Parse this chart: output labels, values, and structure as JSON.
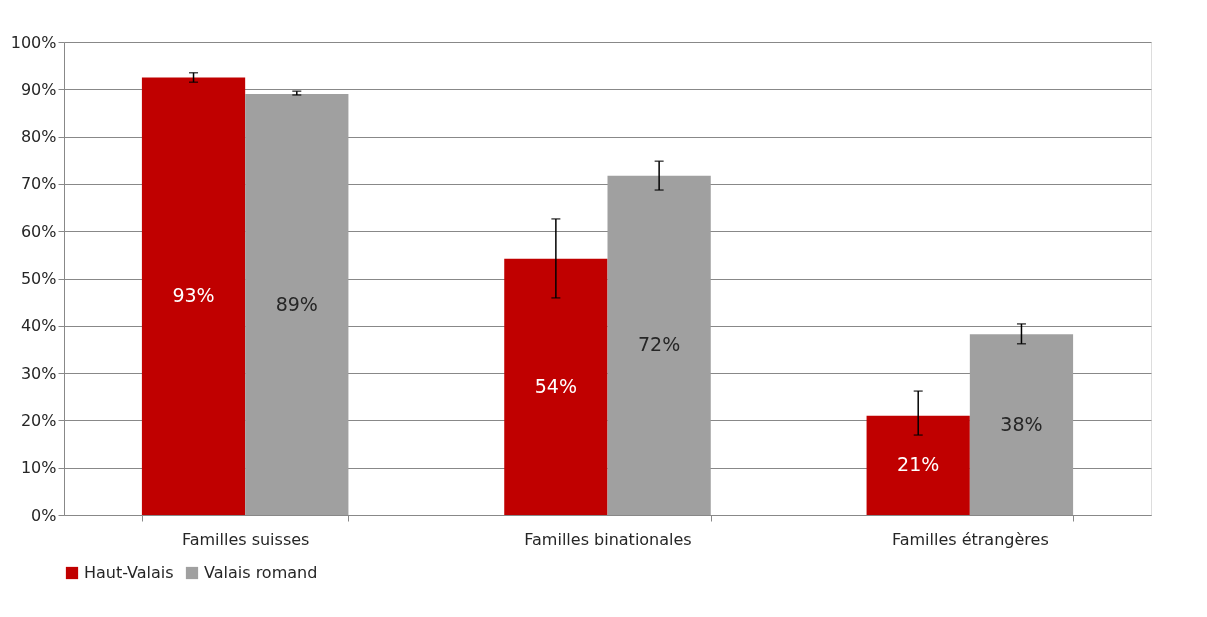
{
  "chart_data": {
    "type": "bar",
    "categories": [
      "Familles suisses",
      "Familles binationales",
      "Familles étrangères"
    ],
    "series": [
      {
        "name": "Haut-Valais",
        "color": "#c00000",
        "values": [
          92.5,
          54.2,
          21.0
        ],
        "errors": [
          [
            91.5,
            93.5
          ],
          [
            45.9,
            62.6
          ],
          [
            16.9,
            26.2
          ]
        ],
        "value_labels": [
          "93%",
          "54%",
          "21%"
        ]
      },
      {
        "name": "Valais romand",
        "color": "#a0a0a0",
        "values": [
          89.0,
          71.7,
          38.2
        ],
        "errors": [
          [
            88.8,
            89.6
          ],
          [
            68.7,
            74.8
          ],
          [
            36.2,
            40.4
          ]
        ],
        "value_labels": [
          "89%",
          "72%",
          "38%"
        ]
      }
    ],
    "ylim": [
      0,
      100
    ],
    "yticks": [
      {
        "value": 0,
        "label": "0%"
      },
      {
        "value": 10,
        "label": "10%"
      },
      {
        "value": 20,
        "label": "20%"
      },
      {
        "value": 30,
        "label": "30%"
      },
      {
        "value": 40,
        "label": "40%"
      },
      {
        "value": 50,
        "label": "50%"
      },
      {
        "value": 60,
        "label": "60%"
      },
      {
        "value": 70,
        "label": "70%"
      },
      {
        "value": 80,
        "label": "80%"
      },
      {
        "value": 90,
        "label": "90%"
      },
      {
        "value": 100,
        "label": "100%"
      }
    ],
    "grid": "y",
    "legend": "bottom"
  }
}
